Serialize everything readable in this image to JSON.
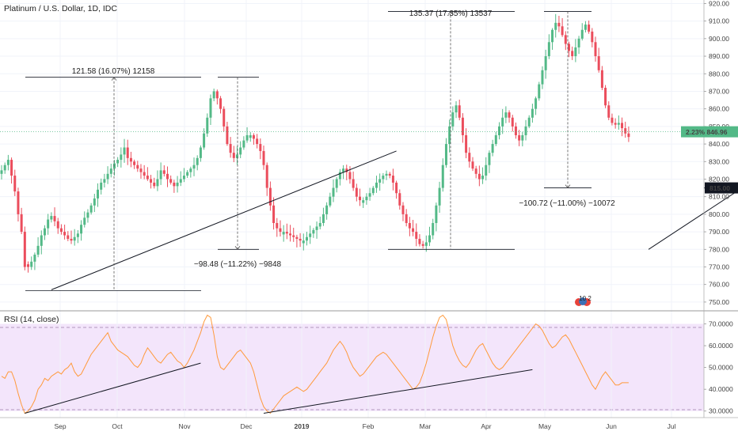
{
  "chart_data": [
    {
      "type": "candlestick",
      "title": "Platinum / U.S. Dollar, 1D, IDC",
      "y_axis": {
        "side": "right",
        "ylim": [
          745,
          922
        ],
        "ticks": [
          750,
          760,
          770,
          780,
          790,
          800,
          810,
          820,
          830,
          840,
          850,
          860,
          870,
          880,
          890,
          900,
          910,
          920
        ]
      },
      "x_axis": {
        "ticks": [
          "Sep",
          "Oct",
          "Nov",
          "Dec",
          "2019",
          "Feb",
          "Mar",
          "Apr",
          "May",
          "Jun",
          "Jul"
        ]
      },
      "colors": {
        "up": "#53b987",
        "down": "#eb4d5c",
        "rsi_line": "#ff9a3c",
        "rsi_band": "#f3e5fb",
        "price_label_bg": "#53b987",
        "target_label_bg": "#131722"
      },
      "last_price": {
        "change": "2.23%",
        "price": "846.96",
        "level": 846.96
      },
      "target": {
        "value": "815.00",
        "level": 815
      },
      "closes": [
        825,
        828,
        831,
        822,
        813,
        800,
        790,
        770,
        770,
        773,
        777,
        782,
        788,
        792,
        797,
        799,
        796,
        792,
        790,
        788,
        786,
        785,
        787,
        789,
        794,
        798,
        801,
        805,
        809,
        814,
        818,
        820,
        823,
        826,
        829,
        831,
        834,
        838,
        832,
        830,
        828,
        826,
        824,
        822,
        820,
        818,
        816,
        820,
        825,
        823,
        820,
        818,
        816,
        818,
        820,
        822,
        824,
        826,
        828,
        832,
        838,
        846,
        855,
        866,
        870,
        866,
        860,
        850,
        840,
        835,
        832,
        834,
        838,
        842,
        845,
        845,
        843,
        840,
        836,
        828,
        815,
        805,
        795,
        792,
        790,
        790,
        789,
        788,
        787,
        786,
        785,
        785,
        787,
        789,
        791,
        793,
        795,
        800,
        805,
        810,
        815,
        820,
        824,
        826,
        824,
        820,
        815,
        810,
        808,
        808,
        810,
        812,
        815,
        818,
        820,
        822,
        823,
        822,
        818,
        812,
        805,
        800,
        795,
        792,
        790,
        786,
        783,
        782,
        784,
        788,
        795,
        805,
        815,
        828,
        840,
        850,
        858,
        862,
        855,
        845,
        835,
        830,
        826,
        823,
        820,
        822,
        828,
        835,
        840,
        845,
        850,
        855,
        858,
        855,
        850,
        845,
        842,
        845,
        850,
        855,
        860,
        866,
        874,
        882,
        890,
        898,
        905,
        909,
        907,
        902,
        897,
        893,
        890,
        895,
        900,
        905,
        908,
        904,
        898,
        890,
        882,
        872,
        862,
        855,
        852,
        851,
        852,
        849,
        846,
        844
      ],
      "ranges": [
        {
          "text": "121.58 (16.07%) 12158"
        },
        {
          "text": "−98.48 (−11.22%) −9848"
        },
        {
          "text": "135.37 (17.35%) 13537"
        },
        {
          "text": "−100.72 (−11.00%) −10072"
        }
      ],
      "trendlines": [
        {
          "from": [
            15,
            757
          ],
          "to": [
            119,
            836
          ]
        },
        {
          "from": [
            195,
            780
          ],
          "to": [
            274,
            878
          ]
        }
      ],
      "projection": {
        "from": [
          286,
          842
        ],
        "to": [
          304,
          815
        ]
      }
    },
    {
      "type": "line",
      "title": "RSI (14, close)",
      "y_axis": {
        "side": "right",
        "ylim": [
          27,
          76
        ],
        "ticks": [
          30,
          40,
          50,
          60,
          70
        ],
        "tick_labels": [
          "30.0000",
          "40.0000",
          "50.0000",
          "60.0000",
          "70.0000"
        ]
      },
      "band": [
        30,
        70
      ],
      "values": [
        46,
        45,
        48,
        48,
        44,
        38,
        33,
        29,
        30,
        32,
        35,
        40,
        42,
        45,
        44,
        46,
        47,
        48,
        47,
        49,
        50,
        52,
        48,
        46,
        47,
        50,
        53,
        56,
        58,
        60,
        62,
        64,
        66,
        62,
        60,
        58,
        57,
        56,
        55,
        53,
        51,
        50,
        52,
        56,
        59,
        57,
        55,
        53,
        52,
        54,
        56,
        57,
        55,
        53,
        52,
        50,
        52,
        55,
        58,
        62,
        66,
        71,
        74,
        73,
        65,
        55,
        50,
        49,
        51,
        53,
        55,
        57,
        58,
        56,
        54,
        52,
        48,
        42,
        36,
        32,
        30,
        29,
        31,
        33,
        35,
        37,
        38,
        39,
        40,
        41,
        40,
        39,
        40,
        42,
        44,
        46,
        48,
        50,
        52,
        55,
        58,
        60,
        62,
        60,
        57,
        53,
        50,
        48,
        46,
        47,
        49,
        51,
        53,
        55,
        56,
        57,
        56,
        54,
        52,
        50,
        48,
        46,
        44,
        42,
        40,
        41,
        43,
        47,
        52,
        58,
        64,
        69,
        73,
        74,
        72,
        66,
        60,
        56,
        53,
        51,
        50,
        52,
        55,
        58,
        60,
        61,
        58,
        55,
        52,
        50,
        49,
        50,
        52,
        54,
        56,
        58,
        60,
        62,
        64,
        66,
        68,
        70,
        69,
        67,
        64,
        61,
        59,
        60,
        62,
        64,
        65,
        63,
        60,
        57,
        54,
        51,
        48,
        45,
        42,
        40,
        43,
        46,
        48,
        46,
        44,
        42,
        42,
        43,
        43,
        43
      ]
    }
  ],
  "misc": {
    "news_badge": "10 2"
  }
}
